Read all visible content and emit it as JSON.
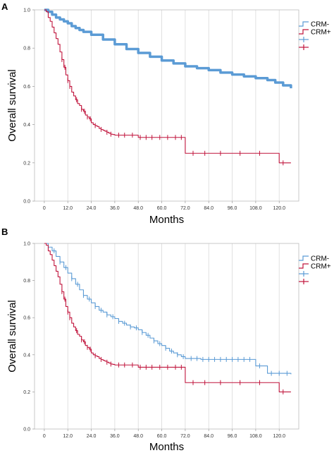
{
  "chart_data": [
    {
      "panel": "A",
      "type": "line",
      "subtype": "kaplan-meier",
      "xlabel": "Months",
      "ylabel": "Overall survival",
      "xlim": [
        -5,
        130
      ],
      "ylim": [
        0,
        1.0
      ],
      "xticks": [
        0,
        12,
        24,
        36,
        48,
        60,
        72,
        84,
        96,
        108,
        120
      ],
      "xtick_labels": [
        "0",
        "12.0",
        "24.0",
        "36.0",
        "48.0",
        "60.0",
        "72.0",
        "84.0",
        "96.0",
        "108.0",
        "120.0"
      ],
      "yticks": [
        0,
        0.2,
        0.4,
        0.6,
        0.8,
        1.0
      ],
      "ytick_labels": [
        "0.0",
        "0.2",
        "0.4",
        "0.6",
        "0.8",
        "1.0"
      ],
      "grid": "vertical",
      "legend_placement": "top-right",
      "legend": [
        {
          "label": "CRM-",
          "color": "#5b9bd5",
          "marker": "step"
        },
        {
          "label": "CRM+",
          "color": "#c0143c",
          "marker": "step"
        },
        {
          "label": "",
          "color": "#5b9bd5",
          "marker": "censor"
        },
        {
          "label": "",
          "color": "#c0143c",
          "marker": "censor"
        }
      ],
      "series": [
        {
          "name": "CRM-",
          "color": "#5b9bd5",
          "line_width": 3.5,
          "x": [
            0,
            2,
            4,
            6,
            8,
            10,
            12,
            14,
            16,
            18,
            20,
            24,
            30,
            36,
            42,
            48,
            54,
            60,
            66,
            72,
            78,
            84,
            90,
            96,
            102,
            108,
            114,
            118,
            122,
            126
          ],
          "y": [
            1.0,
            0.99,
            0.975,
            0.96,
            0.95,
            0.94,
            0.93,
            0.915,
            0.905,
            0.895,
            0.885,
            0.87,
            0.845,
            0.82,
            0.795,
            0.775,
            0.755,
            0.735,
            0.72,
            0.705,
            0.695,
            0.685,
            0.672,
            0.662,
            0.652,
            0.643,
            0.633,
            0.62,
            0.605,
            0.59
          ],
          "censor_x": []
        },
        {
          "name": "CRM+",
          "color": "#c0143c",
          "line_width": 1.1,
          "x": [
            0,
            1,
            2,
            3,
            4,
            5,
            6,
            7,
            8,
            9,
            10,
            11,
            12,
            13,
            14,
            15,
            16,
            17,
            18,
            19,
            20,
            21,
            22,
            23,
            24,
            25,
            26,
            27,
            28,
            29,
            30,
            31,
            32,
            33,
            34,
            35,
            36,
            40,
            44,
            48,
            72,
            84,
            120,
            126
          ],
          "y": [
            1.0,
            0.99,
            0.96,
            0.94,
            0.91,
            0.88,
            0.85,
            0.82,
            0.78,
            0.74,
            0.7,
            0.66,
            0.63,
            0.6,
            0.57,
            0.55,
            0.53,
            0.51,
            0.5,
            0.48,
            0.47,
            0.45,
            0.44,
            0.43,
            0.41,
            0.4,
            0.395,
            0.39,
            0.38,
            0.375,
            0.37,
            0.365,
            0.36,
            0.355,
            0.35,
            0.348,
            0.345,
            0.345,
            0.345,
            0.333,
            0.25,
            0.25,
            0.2,
            0.2
          ],
          "censor_x": [
            9,
            10.5,
            12,
            13,
            16.5,
            19,
            20.5,
            22,
            23.5,
            26,
            29,
            32,
            34,
            38,
            41,
            45,
            49,
            52,
            55,
            59,
            63,
            67,
            70,
            76,
            82,
            90,
            100,
            110,
            122
          ]
        }
      ]
    },
    {
      "panel": "B",
      "type": "line",
      "subtype": "kaplan-meier",
      "xlabel": "Months",
      "ylabel": "Overall survival",
      "xlim": [
        -5,
        130
      ],
      "ylim": [
        0,
        1.0
      ],
      "xticks": [
        0,
        12,
        24,
        36,
        48,
        60,
        72,
        84,
        96,
        108,
        120
      ],
      "xtick_labels": [
        "0",
        "12.0",
        "24.0",
        "36.0",
        "48.0",
        "60.0",
        "72.0",
        "84.0",
        "96.0",
        "108.0",
        "120.0"
      ],
      "yticks": [
        0,
        0.2,
        0.4,
        0.6,
        0.8,
        1.0
      ],
      "ytick_labels": [
        "0.0",
        "0.2",
        "0.4",
        "0.6",
        "0.8",
        "1.0"
      ],
      "grid": "vertical",
      "legend_placement": "top-right",
      "legend": [
        {
          "label": "CRM-",
          "color": "#5b9bd5",
          "marker": "step"
        },
        {
          "label": "CRM+",
          "color": "#c0143c",
          "marker": "step"
        },
        {
          "label": "",
          "color": "#5b9bd5",
          "marker": "censor"
        },
        {
          "label": "",
          "color": "#c0143c",
          "marker": "censor"
        }
      ],
      "series": [
        {
          "name": "CRM-",
          "color": "#5b9bd5",
          "line_width": 1.1,
          "x": [
            0,
            2,
            4,
            6,
            8,
            10,
            12,
            14,
            16,
            18,
            20,
            22,
            24,
            26,
            28,
            30,
            32,
            34,
            36,
            38,
            40,
            42,
            44,
            46,
            48,
            50,
            52,
            54,
            56,
            58,
            60,
            62,
            64,
            66,
            68,
            70,
            72,
            80,
            84,
            96,
            108,
            114,
            126
          ],
          "y": [
            1.0,
            0.98,
            0.96,
            0.93,
            0.9,
            0.87,
            0.84,
            0.81,
            0.78,
            0.75,
            0.72,
            0.7,
            0.68,
            0.66,
            0.64,
            0.63,
            0.615,
            0.605,
            0.595,
            0.58,
            0.57,
            0.56,
            0.55,
            0.545,
            0.535,
            0.52,
            0.505,
            0.49,
            0.475,
            0.46,
            0.45,
            0.435,
            0.42,
            0.41,
            0.4,
            0.39,
            0.38,
            0.375,
            0.375,
            0.375,
            0.34,
            0.3,
            0.295
          ],
          "censor_x": [
            5,
            8,
            11,
            14,
            17,
            20,
            23,
            26,
            29,
            32,
            35,
            38,
            41,
            44,
            47,
            50,
            53,
            56,
            59,
            62,
            65,
            68,
            71,
            75,
            78,
            81,
            84,
            87,
            90,
            93,
            96,
            99,
            102,
            105,
            110,
            116,
            120,
            124
          ]
        },
        {
          "name": "CRM+",
          "color": "#c0143c",
          "line_width": 1.1,
          "x": [
            0,
            1,
            2,
            3,
            4,
            5,
            6,
            7,
            8,
            9,
            10,
            11,
            12,
            13,
            14,
            15,
            16,
            17,
            18,
            19,
            20,
            21,
            22,
            23,
            24,
            25,
            26,
            27,
            28,
            29,
            30,
            31,
            32,
            33,
            34,
            35,
            36,
            40,
            44,
            48,
            72,
            84,
            120,
            126
          ],
          "y": [
            1.0,
            0.99,
            0.96,
            0.94,
            0.91,
            0.88,
            0.85,
            0.82,
            0.78,
            0.74,
            0.7,
            0.66,
            0.63,
            0.6,
            0.57,
            0.55,
            0.53,
            0.51,
            0.5,
            0.48,
            0.47,
            0.45,
            0.44,
            0.43,
            0.41,
            0.4,
            0.395,
            0.39,
            0.38,
            0.375,
            0.37,
            0.365,
            0.36,
            0.355,
            0.35,
            0.348,
            0.345,
            0.345,
            0.345,
            0.333,
            0.25,
            0.25,
            0.2,
            0.2
          ],
          "censor_x": [
            9,
            10.5,
            12,
            13,
            16.5,
            19,
            20.5,
            22,
            23.5,
            26,
            29,
            32,
            34,
            38,
            41,
            45,
            49,
            52,
            55,
            59,
            63,
            67,
            70,
            76,
            82,
            90,
            100,
            110,
            122
          ]
        }
      ]
    }
  ]
}
